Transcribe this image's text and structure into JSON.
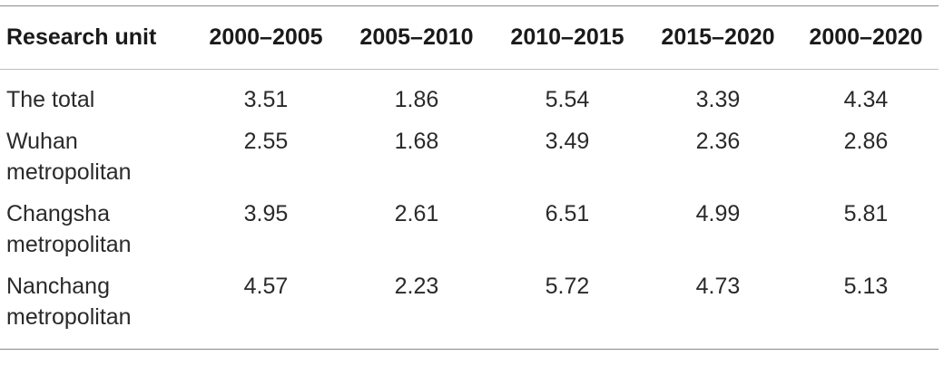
{
  "table": {
    "headers": [
      "Research unit",
      "2000–2005",
      "2005–2010",
      "2010–2015",
      "2015–2020",
      "2000–2020"
    ],
    "rows": [
      {
        "label_line1": "The total",
        "label_line2": "",
        "values": [
          "3.51",
          "1.86",
          "5.54",
          "3.39",
          "4.34"
        ]
      },
      {
        "label_line1": "Wuhan",
        "label_line2": "metropolitan",
        "values": [
          "2.55",
          "1.68",
          "3.49",
          "2.36",
          "2.86"
        ]
      },
      {
        "label_line1": "Changsha",
        "label_line2": "metropolitan",
        "values": [
          "3.95",
          "2.61",
          "6.51",
          "4.99",
          "5.81"
        ]
      },
      {
        "label_line1": "Nanchang",
        "label_line2": "metropolitan",
        "values": [
          "4.57",
          "2.23",
          "5.72",
          "4.73",
          "5.13"
        ]
      }
    ]
  }
}
